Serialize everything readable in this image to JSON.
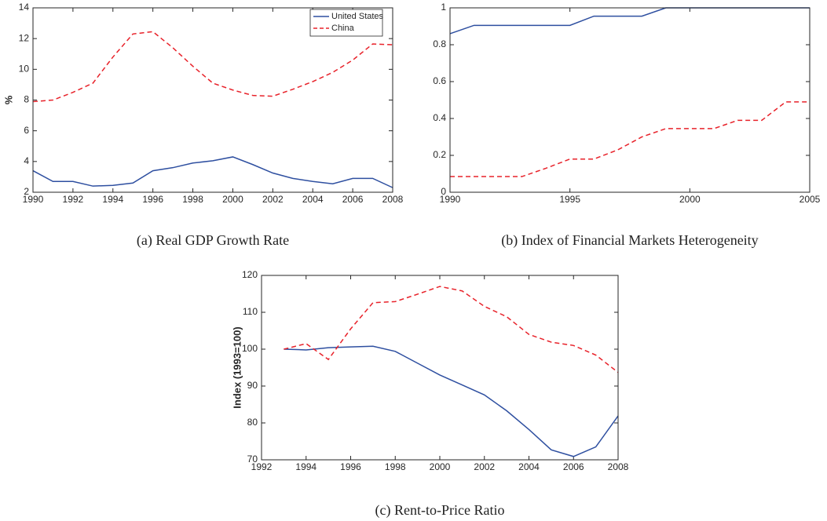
{
  "chart_data": [
    {
      "type": "line",
      "title": "(a) Real GDP Growth Rate",
      "ylabel": "%",
      "x": [
        1990,
        1991,
        1992,
        1993,
        1994,
        1995,
        1996,
        1997,
        1998,
        1999,
        2000,
        2001,
        2002,
        2003,
        2004,
        2005,
        2006,
        2007,
        2008
      ],
      "series": [
        {
          "name": "United States",
          "color": "#2e4fa0",
          "linestyle": "solid",
          "values": [
            3.4,
            2.7,
            2.7,
            2.4,
            2.45,
            2.6,
            3.4,
            3.6,
            3.9,
            4.05,
            4.3,
            3.8,
            3.25,
            2.9,
            2.7,
            2.55,
            2.9,
            2.9,
            2.3
          ]
        },
        {
          "name": "China",
          "color": "#e8222a",
          "linestyle": "dashed",
          "values": [
            7.9,
            8.0,
            8.5,
            9.1,
            10.8,
            12.3,
            12.45,
            11.4,
            10.2,
            9.1,
            8.65,
            8.3,
            8.25,
            8.7,
            9.2,
            9.8,
            10.6,
            11.65,
            11.6
          ]
        }
      ],
      "xlim": [
        1990,
        2008
      ],
      "xticks": [
        1990,
        1992,
        1994,
        1996,
        1998,
        2000,
        2002,
        2004,
        2006,
        2008
      ],
      "ylim": [
        2,
        14
      ],
      "yticks": [
        2,
        4,
        6,
        8,
        10,
        12,
        14
      ],
      "legend": "upper right"
    },
    {
      "type": "line",
      "title": "(b) Index of Financial Markets Heterogeneity",
      "x": [
        1990,
        1991,
        1992,
        1993,
        1994,
        1995,
        1996,
        1997,
        1998,
        1999,
        2000,
        2001,
        2002,
        2003,
        2004,
        2005
      ],
      "series": [
        {
          "color": "#2e4fa0",
          "linestyle": "solid",
          "values": [
            0.86,
            0.905,
            0.905,
            0.905,
            0.905,
            0.905,
            0.955,
            0.955,
            0.955,
            1,
            1,
            1,
            1,
            1,
            1,
            1
          ]
        },
        {
          "color": "#e8222a",
          "linestyle": "dashed",
          "values": [
            0.085,
            0.085,
            0.085,
            0.085,
            0.13,
            0.18,
            0.18,
            0.23,
            0.3,
            0.345,
            0.345,
            0.345,
            0.39,
            0.39,
            0.49,
            0.49
          ]
        }
      ],
      "xlim": [
        1990,
        2005
      ],
      "xticks": [
        1990,
        1995,
        2000,
        2005
      ],
      "ylim": [
        0,
        1
      ],
      "yticks": [
        0,
        0.2,
        0.4,
        0.6,
        0.8,
        1
      ]
    },
    {
      "type": "line",
      "title": "(c) Rent-to-Price Ratio",
      "ylabel": "Index (1993=100)",
      "x": [
        1993,
        1994,
        1995,
        1996,
        1997,
        1998,
        1999,
        2000,
        2001,
        2002,
        2003,
        2004,
        2005,
        2006,
        2007,
        2008
      ],
      "series": [
        {
          "color": "#2e4fa0",
          "linestyle": "solid",
          "values": [
            100,
            99.8,
            100.4,
            100.6,
            100.8,
            99.4,
            96.2,
            93.0,
            90.3,
            87.6,
            83.3,
            78.2,
            72.7,
            70.9,
            73.5,
            81.9
          ]
        },
        {
          "color": "#e8222a",
          "linestyle": "dashed",
          "values": [
            100,
            101.5,
            97.2,
            105.5,
            112.6,
            112.9,
            114.9,
            117.0,
            115.8,
            111.6,
            108.8,
            104.0,
            101.9,
            101.0,
            98.4,
            93.7
          ]
        }
      ],
      "xlim": [
        1992,
        2008
      ],
      "xticks": [
        1992,
        1994,
        1996,
        1998,
        2000,
        2002,
        2004,
        2006,
        2008
      ],
      "ylim": [
        70,
        120
      ],
      "yticks": [
        70,
        80,
        90,
        100,
        110,
        120
      ]
    }
  ]
}
